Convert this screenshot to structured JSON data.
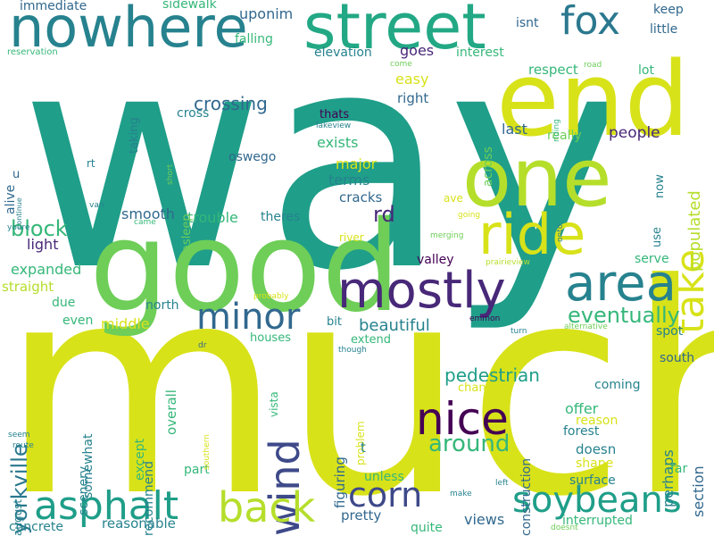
{
  "words": [
    {
      "text": "way",
      "color": "#1f9e89"
    },
    {
      "text": "much",
      "color": "#d8e219"
    },
    {
      "text": "good",
      "color": "#6ece58"
    },
    {
      "text": "end",
      "color": "#d8e219"
    },
    {
      "text": "one",
      "color": "#b5de2b"
    },
    {
      "text": "street",
      "color": "#22a884"
    },
    {
      "text": "nowhere",
      "color": "#26828e"
    },
    {
      "text": "ride",
      "color": "#d8e219"
    },
    {
      "text": "mostly",
      "color": "#482878"
    },
    {
      "text": "area",
      "color": "#26828e"
    },
    {
      "text": "take",
      "color": "#d8e219"
    },
    {
      "text": "fox",
      "color": "#2a788e"
    },
    {
      "text": "nice",
      "color": "#440154"
    },
    {
      "text": "minor",
      "color": "#31688e"
    },
    {
      "text": "wind",
      "color": "#3e4989"
    },
    {
      "text": "back",
      "color": "#b5de2b"
    },
    {
      "text": "asphalt",
      "color": "#1f9e89"
    },
    {
      "text": "corn",
      "color": "#3e4989"
    },
    {
      "text": "soybeans",
      "color": "#1f9e89"
    },
    {
      "text": "eventually",
      "color": "#35b779"
    },
    {
      "text": "around",
      "color": "#35b779"
    },
    {
      "text": "yorkville",
      "color": "#2a788e"
    },
    {
      "text": "block",
      "color": "#35b779"
    },
    {
      "text": "crossing",
      "color": "#31688e"
    },
    {
      "text": "uponim",
      "color": "#31688e"
    },
    {
      "text": "sidewalk",
      "color": "#35b779"
    },
    {
      "text": "immediate",
      "color": "#31688e"
    },
    {
      "text": "rd",
      "color": "#482878"
    },
    {
      "text": "pedestrian",
      "color": "#1f9e89"
    },
    {
      "text": "beautiful",
      "color": "#26828e"
    },
    {
      "text": "populated",
      "color": "#b5de2b"
    },
    {
      "text": "people",
      "color": "#482878"
    },
    {
      "text": "smooth",
      "color": "#31688e"
    },
    {
      "text": "trouble",
      "color": "#35b779"
    },
    {
      "text": "expanded",
      "color": "#35b779"
    },
    {
      "text": "light",
      "color": "#482878"
    },
    {
      "text": "straight",
      "color": "#b5de2b"
    },
    {
      "text": "exists",
      "color": "#35b779"
    },
    {
      "text": "terms",
      "color": "#26828e"
    },
    {
      "text": "major",
      "color": "#d8e219"
    },
    {
      "text": "cracks",
      "color": "#31688e"
    },
    {
      "text": "theres",
      "color": "#26828e"
    },
    {
      "text": "oswego",
      "color": "#31688e"
    },
    {
      "text": "easy",
      "color": "#d8e219"
    },
    {
      "text": "right",
      "color": "#31688e"
    },
    {
      "text": "goes",
      "color": "#482878"
    },
    {
      "text": "respect",
      "color": "#35b779"
    },
    {
      "text": "elevation",
      "color": "#26828e"
    },
    {
      "text": "interest",
      "color": "#35b779"
    },
    {
      "text": "falling",
      "color": "#35b779"
    },
    {
      "text": "isnt",
      "color": "#31688e"
    },
    {
      "text": "keep",
      "color": "#31688e"
    },
    {
      "text": "little",
      "color": "#31688e"
    },
    {
      "text": "lot",
      "color": "#35b779"
    },
    {
      "text": "last",
      "color": "#31688e"
    },
    {
      "text": "really",
      "color": "#6ece58"
    },
    {
      "text": "thats",
      "color": "#440154"
    },
    {
      "text": "cross",
      "color": "#26828e"
    },
    {
      "text": "taking",
      "color": "#26828e"
    },
    {
      "text": "across",
      "color": "#6ece58"
    },
    {
      "text": "now",
      "color": "#26828e"
    },
    {
      "text": "use",
      "color": "#26828e"
    },
    {
      "text": "valley",
      "color": "#440154"
    },
    {
      "text": "serve",
      "color": "#35b779"
    },
    {
      "text": "spot",
      "color": "#26828e"
    },
    {
      "text": "south",
      "color": "#31688e"
    },
    {
      "text": "coming",
      "color": "#26828e"
    },
    {
      "text": "perhaps",
      "color": "#26828e"
    },
    {
      "text": "section",
      "color": "#31688e"
    },
    {
      "text": "offer",
      "color": "#35b779"
    },
    {
      "text": "reason",
      "color": "#d8e219"
    },
    {
      "text": "forest",
      "color": "#26828e"
    },
    {
      "text": "doesn",
      "color": "#26828e"
    },
    {
      "text": "shape",
      "color": "#d8e219"
    },
    {
      "text": "far",
      "color": "#35b779"
    },
    {
      "text": "surface",
      "color": "#26828e"
    },
    {
      "text": "interrupted",
      "color": "#35b779"
    },
    {
      "text": "views",
      "color": "#31688e"
    },
    {
      "text": "quite",
      "color": "#35b779"
    },
    {
      "text": "pretty",
      "color": "#31688e"
    },
    {
      "text": "unless",
      "color": "#35b779"
    },
    {
      "text": "construction",
      "color": "#31688e"
    },
    {
      "text": "problem",
      "color": "#d8e219"
    },
    {
      "text": "figuring",
      "color": "#31688e"
    },
    {
      "text": "changes",
      "color": "#d8e219"
    },
    {
      "text": "t",
      "color": "#26828e"
    },
    {
      "text": "vista",
      "color": "#35b779"
    },
    {
      "text": "extend",
      "color": "#35b779"
    },
    {
      "text": "houses",
      "color": "#35b779"
    },
    {
      "text": "bit",
      "color": "#26828e"
    },
    {
      "text": "overall",
      "color": "#35b779"
    },
    {
      "text": "except",
      "color": "#35b779"
    },
    {
      "text": "recommend",
      "color": "#26828e"
    },
    {
      "text": "scenery",
      "color": "#26828e"
    },
    {
      "text": "somewhat",
      "color": "#26828e"
    },
    {
      "text": "part",
      "color": "#35b779"
    },
    {
      "text": "middle",
      "color": "#d8e219"
    },
    {
      "text": "north",
      "color": "#26828e"
    },
    {
      "text": "even",
      "color": "#35b779"
    },
    {
      "text": "due",
      "color": "#35b779"
    },
    {
      "text": "reasonable",
      "color": "#26828e"
    },
    {
      "text": "concrete",
      "color": "#26828e"
    },
    {
      "text": "august",
      "color": "#26828e"
    },
    {
      "text": "river",
      "color": "#d8e219"
    },
    {
      "text": "ave",
      "color": "#d8e219"
    },
    {
      "text": "asleep",
      "color": "#6ece58"
    },
    {
      "text": "alive",
      "color": "#31688e"
    },
    {
      "text": "rt",
      "color": "#26828e"
    },
    {
      "text": "u",
      "color": "#31688e"
    },
    {
      "text": "reservation",
      "color": "#35b779"
    },
    {
      "text": "road",
      "color": "#6ece58"
    },
    {
      "text": "riding",
      "color": "#35b779"
    },
    {
      "text": "come",
      "color": "#6ece58"
    },
    {
      "text": "lakeview",
      "color": "#26828e"
    },
    {
      "text": "short",
      "color": "#6ece58"
    },
    {
      "text": "continue",
      "color": "#26828e"
    },
    {
      "text": "youre",
      "color": "#26828e"
    },
    {
      "text": "van",
      "color": "#26828e"
    },
    {
      "text": "came",
      "color": "#35b779"
    },
    {
      "text": "going",
      "color": "#d8e219"
    },
    {
      "text": "onto",
      "color": "#26828e"
    },
    {
      "text": "merging",
      "color": "#6ece58"
    },
    {
      "text": "prairieview",
      "color": "#b5de2b"
    },
    {
      "text": "probably",
      "color": "#d8e219"
    },
    {
      "text": "emmon",
      "color": "#440154"
    },
    {
      "text": "turn",
      "color": "#26828e"
    },
    {
      "text": "alternative",
      "color": "#6ece58"
    },
    {
      "text": "dr",
      "color": "#31688e"
    },
    {
      "text": "though",
      "color": "#26828e"
    },
    {
      "text": "southern",
      "color": "#d8e219"
    },
    {
      "text": "seem",
      "color": "#26828e"
    },
    {
      "text": "route",
      "color": "#26828e"
    },
    {
      "text": "make",
      "color": "#26828e"
    },
    {
      "text": "left",
      "color": "#26828e"
    },
    {
      "text": "doesnt",
      "color": "#6ece58"
    }
  ]
}
